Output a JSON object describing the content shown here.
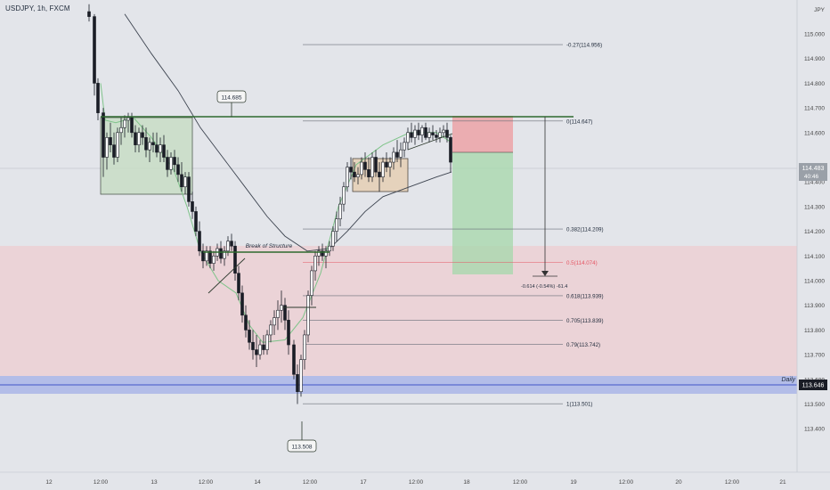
{
  "header": {
    "symbol": "USDJPY, 1h, FXCM",
    "currency": "JPY"
  },
  "price_axis": {
    "ticks": [
      "115.000",
      "114.900",
      "114.800",
      "114.700",
      "114.600",
      "114.400",
      "114.300",
      "114.200",
      "114.100",
      "114.000",
      "113.900",
      "113.800",
      "113.700",
      "113.600",
      "113.500",
      "113.400"
    ],
    "current_price": "114.483",
    "countdown": "40:46",
    "daily_price": "113.646"
  },
  "time_axis": {
    "ticks": [
      "12",
      "12:00",
      "13",
      "12:00",
      "14",
      "12:00",
      "17",
      "12:00",
      "18",
      "12:00",
      "19",
      "12:00",
      "20",
      "12:00",
      "21"
    ]
  },
  "fib": {
    "levels": [
      {
        "label": "-0.27(114.956)"
      },
      {
        "label": "0(114.647)"
      },
      {
        "label": "0.382(114.209)"
      },
      {
        "label": "0.5(114.074)"
      },
      {
        "label": "0.618(113.939)"
      },
      {
        "label": "0.705(113.839)"
      },
      {
        "label": "0.79(113.742)"
      },
      {
        "label": "1(113.501)"
      }
    ]
  },
  "annotations": {
    "high_tag": "114.685",
    "low_tag": "113.508",
    "bos": "Break of Structure",
    "daily": "Daily",
    "measure": "-0.614 (-0.54%) -61.4"
  },
  "colors": {
    "background": "#e3e5ea",
    "bull": "#ffffff",
    "bear": "#1a1d26",
    "fast_ma": "#7fc48a",
    "slow_ma": "#3d4450",
    "structure": "#2e6a2e",
    "fib_target": "#e55563",
    "current_price_bg": "#9aa0a8",
    "daily_price_bg": "#1a1d26"
  },
  "chart_data": {
    "type": "candlestick",
    "instrument": "USDJPY",
    "timeframe": "1h",
    "y_axis": {
      "min": 113.35,
      "max": 115.1
    },
    "fib_retracement": {
      "high": 114.647,
      "low": 113.501
    },
    "fast_ma_shape": [
      [
        113,
        114.8
      ],
      [
        118,
        114.65
      ],
      [
        130,
        114.64
      ],
      [
        150,
        114.66
      ],
      [
        170,
        114.58
      ],
      [
        195,
        114.45
      ],
      [
        210,
        114.3
      ],
      [
        225,
        114.12
      ],
      [
        245,
        114.0
      ],
      [
        265,
        113.95
      ],
      [
        280,
        113.82
      ],
      [
        295,
        113.75
      ],
      [
        320,
        113.76
      ],
      [
        340,
        113.85
      ],
      [
        360,
        114.03
      ],
      [
        380,
        114.3
      ],
      [
        400,
        114.47
      ],
      [
        430,
        114.55
      ],
      [
        460,
        114.6
      ],
      [
        490,
        114.6
      ],
      [
        507,
        114.56
      ]
    ],
    "slow_ma_shape": [
      [
        140,
        115.08
      ],
      [
        170,
        114.92
      ],
      [
        200,
        114.77
      ],
      [
        225,
        114.62
      ],
      [
        250,
        114.5
      ],
      [
        275,
        114.38
      ],
      [
        300,
        114.26
      ],
      [
        320,
        114.18
      ],
      [
        345,
        114.12
      ],
      [
        370,
        114.13
      ],
      [
        390,
        114.2
      ],
      [
        410,
        114.28
      ],
      [
        430,
        114.34
      ],
      [
        460,
        114.38
      ],
      [
        490,
        114.42
      ],
      [
        507,
        114.44
      ]
    ],
    "candles": [
      [
        100,
        115.09,
        115.12,
        115.05,
        115.07
      ],
      [
        106,
        115.07,
        115.08,
        114.75,
        114.8
      ],
      [
        110,
        114.8,
        114.82,
        114.65,
        114.68
      ],
      [
        116,
        114.68,
        114.7,
        114.42,
        114.5
      ],
      [
        120,
        114.5,
        114.6,
        114.45,
        114.58
      ],
      [
        124,
        114.58,
        114.64,
        114.52,
        114.55
      ],
      [
        128,
        114.55,
        114.6,
        114.47,
        114.5
      ],
      [
        132,
        114.5,
        114.62,
        114.48,
        114.6
      ],
      [
        136,
        114.6,
        114.66,
        114.55,
        114.62
      ],
      [
        140,
        114.62,
        114.67,
        114.58,
        114.65
      ],
      [
        144,
        114.65,
        114.68,
        114.6,
        114.66
      ],
      [
        148,
        114.66,
        114.68,
        114.58,
        114.6
      ],
      [
        152,
        114.6,
        114.63,
        114.52,
        114.55
      ],
      [
        156,
        114.55,
        114.62,
        114.52,
        114.6
      ],
      [
        160,
        114.6,
        114.63,
        114.55,
        114.58
      ],
      [
        164,
        114.58,
        114.62,
        114.5,
        114.53
      ],
      [
        168,
        114.53,
        114.58,
        114.48,
        114.56
      ],
      [
        172,
        114.56,
        114.6,
        114.52,
        114.55
      ],
      [
        176,
        114.55,
        114.6,
        114.5,
        114.52
      ],
      [
        180,
        114.52,
        114.58,
        114.48,
        114.55
      ],
      [
        184,
        114.55,
        114.59,
        114.48,
        114.5
      ],
      [
        188,
        114.5,
        114.53,
        114.42,
        114.45
      ],
      [
        192,
        114.45,
        114.52,
        114.43,
        114.5
      ],
      [
        196,
        114.5,
        114.53,
        114.44,
        114.47
      ],
      [
        200,
        114.47,
        114.5,
        114.4,
        114.43
      ],
      [
        204,
        114.43,
        114.48,
        114.36,
        114.38
      ],
      [
        208,
        114.38,
        114.44,
        114.35,
        114.42
      ],
      [
        212,
        114.42,
        114.44,
        114.3,
        114.32
      ],
      [
        216,
        114.32,
        114.36,
        114.25,
        114.28
      ],
      [
        220,
        114.28,
        114.3,
        114.18,
        114.2
      ],
      [
        224,
        114.2,
        114.24,
        114.1,
        114.12
      ],
      [
        228,
        114.12,
        114.15,
        114.05,
        114.08
      ],
      [
        232,
        114.08,
        114.14,
        114.06,
        114.12
      ],
      [
        236,
        114.12,
        114.14,
        114.05,
        114.07
      ],
      [
        240,
        114.07,
        114.12,
        114.04,
        114.1
      ],
      [
        244,
        114.1,
        114.15,
        114.08,
        114.13
      ],
      [
        248,
        114.13,
        114.16,
        114.07,
        114.09
      ],
      [
        252,
        114.09,
        114.14,
        114.06,
        114.12
      ],
      [
        256,
        114.12,
        114.18,
        114.1,
        114.16
      ],
      [
        260,
        114.16,
        114.19,
        114.12,
        114.14
      ],
      [
        264,
        114.14,
        114.16,
        114.0,
        114.03
      ],
      [
        268,
        114.03,
        114.06,
        113.92,
        113.95
      ],
      [
        272,
        113.95,
        113.98,
        113.83,
        113.86
      ],
      [
        276,
        113.86,
        113.9,
        113.77,
        113.8
      ],
      [
        280,
        113.8,
        113.84,
        113.72,
        113.75
      ],
      [
        284,
        113.75,
        113.8,
        113.68,
        113.72
      ],
      [
        288,
        113.72,
        113.78,
        113.65,
        113.7
      ],
      [
        292,
        113.7,
        113.76,
        113.68,
        113.74
      ],
      [
        296,
        113.74,
        113.78,
        113.7,
        113.72
      ],
      [
        300,
        113.72,
        113.8,
        113.7,
        113.78
      ],
      [
        304,
        113.78,
        113.84,
        113.75,
        113.82
      ],
      [
        308,
        113.82,
        113.88,
        113.78,
        113.85
      ],
      [
        312,
        113.85,
        113.92,
        113.8,
        113.88
      ],
      [
        316,
        113.88,
        113.96,
        113.83,
        113.9
      ],
      [
        320,
        113.9,
        113.93,
        113.8,
        113.84
      ],
      [
        324,
        113.84,
        113.88,
        113.7,
        113.74
      ],
      [
        330,
        113.74,
        113.76,
        113.6,
        113.62
      ],
      [
        334,
        113.62,
        113.66,
        113.5,
        113.55
      ],
      [
        338,
        113.55,
        113.7,
        113.53,
        113.68
      ],
      [
        342,
        113.68,
        113.8,
        113.64,
        113.78
      ],
      [
        346,
        113.78,
        113.96,
        113.75,
        113.94
      ],
      [
        350,
        113.94,
        114.06,
        113.9,
        114.04
      ],
      [
        354,
        114.04,
        114.12,
        114.0,
        114.1
      ],
      [
        358,
        114.1,
        114.14,
        114.06,
        114.12
      ],
      [
        362,
        114.12,
        114.15,
        114.08,
        114.1
      ],
      [
        366,
        114.1,
        114.14,
        114.05,
        114.12
      ],
      [
        370,
        114.12,
        114.16,
        114.1,
        114.14
      ],
      [
        374,
        114.14,
        114.22,
        114.12,
        114.2
      ],
      [
        378,
        114.2,
        114.28,
        114.16,
        114.25
      ],
      [
        382,
        114.25,
        114.34,
        114.22,
        114.31
      ],
      [
        386,
        114.31,
        114.4,
        114.28,
        114.38
      ],
      [
        390,
        114.38,
        114.48,
        114.36,
        114.46
      ],
      [
        394,
        114.46,
        114.5,
        114.41,
        114.44
      ],
      [
        398,
        114.44,
        114.48,
        114.4,
        114.42
      ],
      [
        402,
        114.42,
        114.46,
        114.39,
        114.43
      ],
      [
        406,
        114.43,
        114.5,
        114.41,
        114.48
      ],
      [
        410,
        114.48,
        114.52,
        114.42,
        114.45
      ],
      [
        414,
        114.45,
        114.5,
        114.4,
        114.42
      ],
      [
        418,
        114.42,
        114.52,
        114.4,
        114.5
      ],
      [
        422,
        114.5,
        114.53,
        114.42,
        114.44
      ],
      [
        426,
        114.44,
        114.48,
        114.36,
        114.42
      ],
      [
        430,
        114.42,
        114.5,
        114.4,
        114.48
      ],
      [
        434,
        114.48,
        114.52,
        114.44,
        114.46
      ],
      [
        438,
        114.46,
        114.5,
        114.42,
        114.48
      ],
      [
        442,
        114.48,
        114.54,
        114.45,
        114.52
      ],
      [
        446,
        114.52,
        114.57,
        114.48,
        114.5
      ],
      [
        450,
        114.5,
        114.56,
        114.46,
        114.53
      ],
      [
        454,
        114.53,
        114.58,
        114.5,
        114.56
      ],
      [
        458,
        114.56,
        114.62,
        114.53,
        114.6
      ],
      [
        462,
        114.6,
        114.64,
        114.56,
        114.58
      ],
      [
        466,
        114.58,
        114.63,
        114.55,
        114.61
      ],
      [
        470,
        114.61,
        114.64,
        114.57,
        114.59
      ],
      [
        474,
        114.59,
        114.63,
        114.56,
        114.62
      ],
      [
        478,
        114.62,
        114.64,
        114.57,
        114.58
      ],
      [
        482,
        114.58,
        114.62,
        114.56,
        114.6
      ],
      [
        486,
        114.6,
        114.63,
        114.57,
        114.59
      ],
      [
        490,
        114.59,
        114.61,
        114.56,
        114.58
      ],
      [
        494,
        114.58,
        114.62,
        114.56,
        114.6
      ],
      [
        498,
        114.6,
        114.63,
        114.58,
        114.61
      ],
      [
        502,
        114.61,
        114.64,
        114.56,
        114.58
      ],
      [
        506,
        114.58,
        114.59,
        114.44,
        114.48
      ]
    ]
  }
}
